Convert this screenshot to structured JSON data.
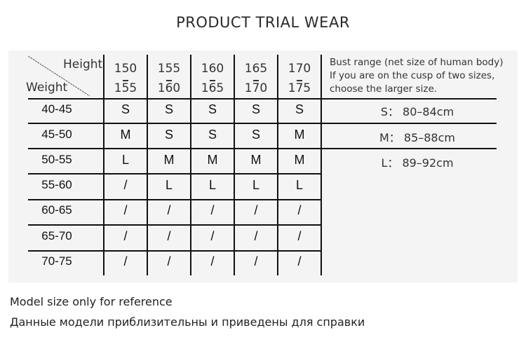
{
  "title": "PRODUCT TRIAL WEAR",
  "table": {
    "corner_height_label": "Height",
    "corner_weight_label": "Weight",
    "height_ranges": [
      {
        "from": "150",
        "to": "155"
      },
      {
        "from": "155",
        "to": "160"
      },
      {
        "from": "160",
        "to": "165"
      },
      {
        "from": "165",
        "to": "170"
      },
      {
        "from": "170",
        "to": "175"
      }
    ],
    "rows": [
      {
        "weight": "40-45",
        "sizes": [
          "S",
          "S",
          "S",
          "S",
          "S"
        ]
      },
      {
        "weight": "45-50",
        "sizes": [
          "M",
          "S",
          "S",
          "S",
          "M"
        ]
      },
      {
        "weight": "50-55",
        "sizes": [
          "L",
          "M",
          "M",
          "M",
          "M"
        ]
      },
      {
        "weight": "55-60",
        "sizes": [
          "/",
          "L",
          "L",
          "L",
          "L"
        ]
      },
      {
        "weight": "60-65",
        "sizes": [
          "/",
          "/",
          "/",
          "/",
          "/"
        ]
      },
      {
        "weight": "65-70",
        "sizes": [
          "/",
          "/",
          "/",
          "/",
          "/"
        ]
      },
      {
        "weight": "70-75",
        "sizes": [
          "/",
          "/",
          "/",
          "/",
          "/"
        ]
      }
    ]
  },
  "bust": {
    "note_lines": [
      "Bust range (net size of human body)",
      "If you are on the cusp of two sizes,",
      "choose the larger size."
    ],
    "ranges": [
      "S： 80–84cm",
      "M： 85–88cm",
      "L： 89–92cm"
    ]
  },
  "footer": {
    "english": "Model size only for reference",
    "russian": "Данные модели приблизительны и приведены для справки"
  }
}
